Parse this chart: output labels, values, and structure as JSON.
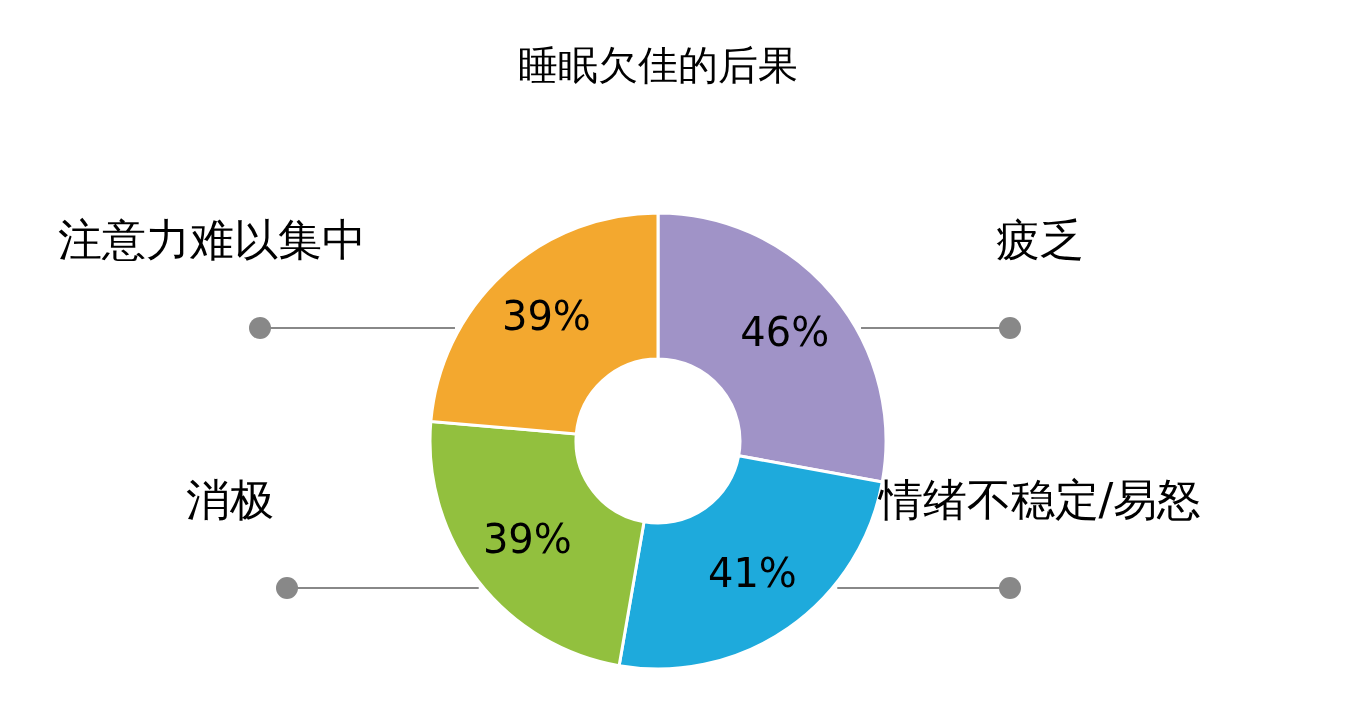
{
  "chart_data": {
    "type": "donut",
    "title": "睡眠欠佳的后果",
    "categories": [
      "疲乏",
      "情绪不稳定/易怒",
      "消极",
      "注意力难以集中"
    ],
    "values": [
      46,
      41,
      39,
      39
    ],
    "colors": [
      "#a093c7",
      "#1eaadc",
      "#92c03e",
      "#f3a82f"
    ],
    "value_labels": [
      "46%",
      "41%",
      "39%",
      "39%"
    ]
  }
}
